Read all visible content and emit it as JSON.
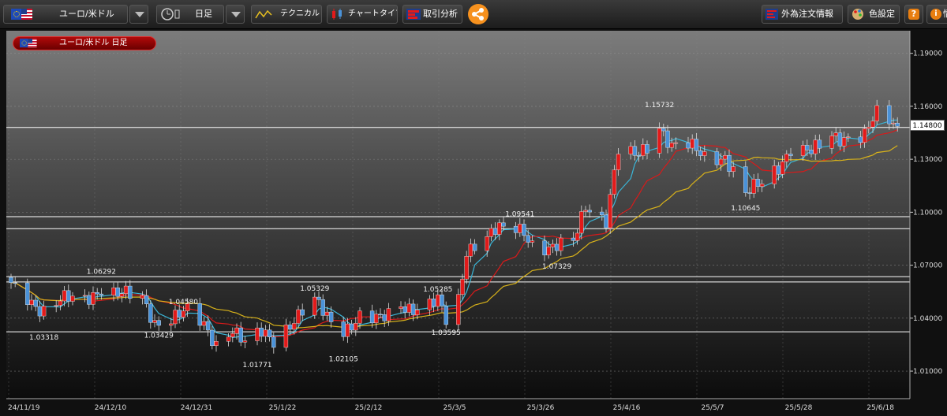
{
  "toolbar": {
    "symbol": "ユーロ/米ドル",
    "timeframe": "日足",
    "technical": "テクニカル",
    "chart_type": "チャートタイプ",
    "trade_analysis": "取引分析",
    "fx_order_info": "外為注文情報",
    "color_settings": "色設定",
    "help": "?",
    "info": "i",
    "info_cut": "情"
  },
  "chart_title": "ユーロ/米ドル 日足",
  "current_price": "1.14800",
  "colors": {
    "up": "#e21a1a",
    "down": "#4a92d8",
    "ma_short": "#3ab6d8",
    "ma_mid": "#d81a1a",
    "ma_long": "#d8b21a",
    "hline": "#ffffff"
  },
  "chart_data": {
    "type": "candlestick",
    "x_labels": [
      "24/11/19",
      "24/12/10",
      "24/12/31",
      "25/1/22",
      "25/2/12",
      "25/3/5",
      "25/3/26",
      "25/4/16",
      "25/5/7",
      "25/5/28",
      "25/6/18"
    ],
    "y_ticks": [
      "1.19000",
      "1.16000",
      "1.13000",
      "1.10000",
      "1.07000",
      "1.04000",
      "1.01000"
    ],
    "ylim": [
      0.9944,
      1.2028
    ],
    "x_range": [
      "2024-11-14",
      "2025-06-20"
    ],
    "horizontal_lines": [
      1.148,
      1.0975,
      1.0907,
      1.0635,
      1.0605,
      1.0323
    ],
    "annotations": [
      {
        "date": "2024-11-22",
        "value": 1.03318,
        "text": "1.03318",
        "pos": "below"
      },
      {
        "date": "2024-12-06",
        "value": 1.06292,
        "text": "1.06292",
        "pos": "above"
      },
      {
        "date": "2024-12-20",
        "value": 1.03429,
        "text": "1.03429",
        "pos": "below"
      },
      {
        "date": "2024-12-26",
        "value": 1.0458,
        "text": "1.04580",
        "pos": "above"
      },
      {
        "date": "2025-01-13",
        "value": 1.01771,
        "text": "1.01771",
        "pos": "below"
      },
      {
        "date": "2025-01-27",
        "value": 1.05329,
        "text": "1.05329",
        "pos": "above"
      },
      {
        "date": "2025-02-03",
        "value": 1.02105,
        "text": "1.02105",
        "pos": "below"
      },
      {
        "date": "2025-02-26",
        "value": 1.05285,
        "text": "1.05285",
        "pos": "above"
      },
      {
        "date": "2025-02-28",
        "value": 1.03595,
        "text": "1.03595",
        "pos": "below"
      },
      {
        "date": "2025-03-18",
        "value": 1.09541,
        "text": "1.09541",
        "pos": "above"
      },
      {
        "date": "2025-03-27",
        "value": 1.07329,
        "text": "1.07329",
        "pos": "below"
      },
      {
        "date": "2025-04-21",
        "value": 1.15732,
        "text": "1.15732",
        "pos": "above"
      },
      {
        "date": "2025-05-12",
        "value": 1.10645,
        "text": "1.10645",
        "pos": "below"
      }
    ],
    "close_path": [
      [
        "2024-11-14",
        1.058
      ],
      [
        "2024-11-22",
        1.045
      ],
      [
        "2024-11-26",
        1.05
      ],
      [
        "2024-12-02",
        1.05
      ],
      [
        "2024-12-06",
        1.058
      ],
      [
        "2024-12-10",
        1.054
      ],
      [
        "2024-12-16",
        1.05
      ],
      [
        "2024-12-19",
        1.038
      ],
      [
        "2024-12-24",
        1.042
      ],
      [
        "2024-12-27",
        1.043
      ],
      [
        "2024-12-31",
        1.035
      ],
      [
        "2025-01-03",
        1.026
      ],
      [
        "2025-01-07",
        1.035
      ],
      [
        "2025-01-10",
        1.025
      ],
      [
        "2025-01-14",
        1.031
      ],
      [
        "2025-01-17",
        1.028
      ],
      [
        "2025-01-22",
        1.04
      ],
      [
        "2025-01-27",
        1.049
      ],
      [
        "2025-01-30",
        1.04
      ],
      [
        "2025-02-03",
        1.034
      ],
      [
        "2025-02-07",
        1.041
      ],
      [
        "2025-02-12",
        1.038
      ],
      [
        "2025-02-17",
        1.048
      ],
      [
        "2025-02-21",
        1.046
      ],
      [
        "2025-02-26",
        1.049
      ],
      [
        "2025-02-28",
        1.038
      ],
      [
        "2025-03-03",
        1.05
      ],
      [
        "2025-03-05",
        1.079
      ],
      [
        "2025-03-07",
        1.083
      ],
      [
        "2025-03-12",
        1.089
      ],
      [
        "2025-03-17",
        1.09
      ],
      [
        "2025-03-19",
        1.09
      ],
      [
        "2025-03-21",
        1.083
      ],
      [
        "2025-03-26",
        1.079
      ],
      [
        "2025-03-31",
        1.082
      ],
      [
        "2025-04-03",
        1.105
      ],
      [
        "2025-04-08",
        1.096
      ],
      [
        "2025-04-11",
        1.134
      ],
      [
        "2025-04-15",
        1.131
      ],
      [
        "2025-04-18",
        1.138
      ],
      [
        "2025-04-21",
        1.15
      ],
      [
        "2025-04-24",
        1.137
      ],
      [
        "2025-04-28",
        1.137
      ],
      [
        "2025-05-02",
        1.132
      ],
      [
        "2025-05-07",
        1.132
      ],
      [
        "2025-05-12",
        1.109
      ],
      [
        "2025-05-16",
        1.117
      ],
      [
        "2025-05-20",
        1.127
      ],
      [
        "2025-05-23",
        1.136
      ],
      [
        "2025-05-28",
        1.133
      ],
      [
        "2025-06-02",
        1.144
      ],
      [
        "2025-06-05",
        1.143
      ],
      [
        "2025-06-10",
        1.143
      ],
      [
        "2025-06-13",
        1.155
      ],
      [
        "2025-06-17",
        1.151
      ],
      [
        "2025-06-18",
        1.148
      ]
    ]
  }
}
